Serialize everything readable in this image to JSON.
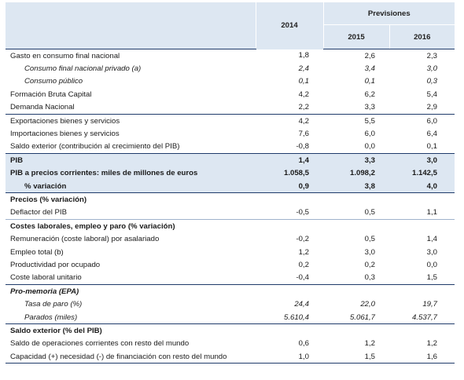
{
  "header": {
    "year_2014": "2014",
    "previsiones": "Previsiones",
    "year_2015": "2015",
    "year_2016": "2016"
  },
  "rows": [
    {
      "label": "Gasto en consumo final nacional",
      "v2014": "1,8",
      "v2015": "2,6",
      "v2016": "2,3"
    },
    {
      "label": "Consumo final nacional privado (a)",
      "v2014": "2,4",
      "v2015": "3,4",
      "v2016": "3,0"
    },
    {
      "label": "Consumo público",
      "v2014": "0,1",
      "v2015": "0,1",
      "v2016": "0,3"
    },
    {
      "label": "Formación Bruta Capital",
      "v2014": "4,2",
      "v2015": "6,2",
      "v2016": "5,4"
    },
    {
      "label": "Demanda Nacional",
      "v2014": "2,2",
      "v2015": "3,3",
      "v2016": "2,9"
    },
    {
      "label": "Exportaciones bienes y servicios",
      "v2014": "4,2",
      "v2015": "5,5",
      "v2016": "6,0"
    },
    {
      "label": "Importaciones bienes y servicios",
      "v2014": "7,6",
      "v2015": "6,0",
      "v2016": "6,4"
    },
    {
      "label": "Saldo exterior (contribución al crecimiento del PIB)",
      "v2014": "-0,8",
      "v2015": "0,0",
      "v2016": "0,1"
    },
    {
      "label": "PIB",
      "v2014": "1,4",
      "v2015": "3,3",
      "v2016": "3,0"
    },
    {
      "label": "PIB a precios corrientes: miles de millones de euros",
      "v2014": "1.058,5",
      "v2015": "1.098,2",
      "v2016": "1.142,5"
    },
    {
      "label": "% variación",
      "v2014": "0,9",
      "v2015": "3,8",
      "v2016": "4,0"
    },
    {
      "label": "Precios (% variación)"
    },
    {
      "label": "Deflactor del PIB",
      "v2014": "-0,5",
      "v2015": "0,5",
      "v2016": "1,1"
    },
    {
      "label": "Costes laborales, empleo y paro (% variación)"
    },
    {
      "label": "Remuneración (coste laboral) por asalariado",
      "v2014": "-0,2",
      "v2015": "0,5",
      "v2016": "1,4"
    },
    {
      "label": "Empleo total (b)",
      "v2014": "1,2",
      "v2015": "3,0",
      "v2016": "3,0"
    },
    {
      "label": "Productividad por ocupado",
      "v2014": "0,2",
      "v2015": "0,2",
      "v2016": "0,0"
    },
    {
      "label": "Coste laboral unitario",
      "v2014": "-0,4",
      "v2015": "0,3",
      "v2016": "1,5"
    },
    {
      "label": "Pro-memoria (EPA)"
    },
    {
      "label": "Tasa de paro (%)",
      "v2014": "24,4",
      "v2015": "22,0",
      "v2016": "19,7"
    },
    {
      "label": "Parados (miles)",
      "v2014": "5.610,4",
      "v2015": "5.061,7",
      "v2016": "4.537,7"
    },
    {
      "label": "Saldo exterior (% del PIB)"
    },
    {
      "label": "Saldo de operaciones corrientes con resto del mundo",
      "v2014": "0,6",
      "v2015": "1,2",
      "v2016": "1,2"
    },
    {
      "label": "Capacidad (+) necesidad (-) de financiación con resto del mundo",
      "v2014": "1,0",
      "v2015": "1,5",
      "v2016": "1,6"
    }
  ]
}
